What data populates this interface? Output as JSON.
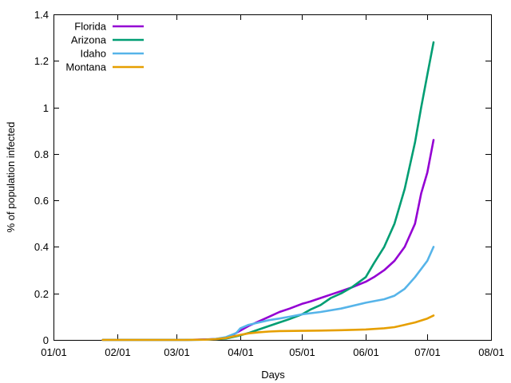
{
  "chart_data": {
    "type": "line",
    "xlabel": "Days",
    "ylabel": "% of population infected",
    "x_ticks": [
      "01/01",
      "02/01",
      "03/01",
      "04/01",
      "05/01",
      "06/01",
      "07/01",
      "08/01"
    ],
    "y_ticks": [
      "0",
      "0.2",
      "0.4",
      "0.6",
      "0.8",
      "1",
      "1.2",
      "1.4"
    ],
    "xlim": [
      "01/01",
      "08/01"
    ],
    "ylim": [
      0,
      1.4
    ],
    "grid": false,
    "legend_position": "top-left",
    "series": [
      {
        "name": "Florida",
        "color": "#9400d3",
        "points": [
          [
            "01/25",
            0
          ],
          [
            "02/15",
            0
          ],
          [
            "03/05",
            0
          ],
          [
            "03/15",
            0.002
          ],
          [
            "03/20",
            0.004
          ],
          [
            "03/25",
            0.01
          ],
          [
            "03/28",
            0.02
          ],
          [
            "04/01",
            0.04
          ],
          [
            "04/05",
            0.06
          ],
          [
            "04/10",
            0.08
          ],
          [
            "04/15",
            0.1
          ],
          [
            "04/20",
            0.12
          ],
          [
            "04/25",
            0.135
          ],
          [
            "05/01",
            0.155
          ],
          [
            "05/05",
            0.165
          ],
          [
            "05/10",
            0.18
          ],
          [
            "05/15",
            0.195
          ],
          [
            "05/20",
            0.21
          ],
          [
            "05/25",
            0.225
          ],
          [
            "06/01",
            0.25
          ],
          [
            "06/05",
            0.27
          ],
          [
            "06/10",
            0.3
          ],
          [
            "06/15",
            0.34
          ],
          [
            "06/20",
            0.4
          ],
          [
            "06/25",
            0.5
          ],
          [
            "06/28",
            0.63
          ],
          [
            "07/01",
            0.72
          ],
          [
            "07/04",
            0.86
          ]
        ]
      },
      {
        "name": "Arizona",
        "color": "#009e73",
        "points": [
          [
            "01/25",
            0
          ],
          [
            "02/15",
            0
          ],
          [
            "03/05",
            0
          ],
          [
            "03/15",
            0.001
          ],
          [
            "03/20",
            0.003
          ],
          [
            "03/25",
            0.006
          ],
          [
            "04/01",
            0.02
          ],
          [
            "04/05",
            0.03
          ],
          [
            "04/10",
            0.045
          ],
          [
            "04/15",
            0.06
          ],
          [
            "04/20",
            0.075
          ],
          [
            "04/25",
            0.09
          ],
          [
            "05/01",
            0.11
          ],
          [
            "05/05",
            0.13
          ],
          [
            "05/10",
            0.15
          ],
          [
            "05/15",
            0.18
          ],
          [
            "05/20",
            0.2
          ],
          [
            "05/25",
            0.225
          ],
          [
            "06/01",
            0.27
          ],
          [
            "06/05",
            0.33
          ],
          [
            "06/10",
            0.4
          ],
          [
            "06/15",
            0.5
          ],
          [
            "06/20",
            0.65
          ],
          [
            "06/25",
            0.85
          ],
          [
            "06/28",
            1.0
          ],
          [
            "07/01",
            1.14
          ],
          [
            "07/04",
            1.28
          ]
        ]
      },
      {
        "name": "Idaho",
        "color": "#56b4e9",
        "points": [
          [
            "01/25",
            0
          ],
          [
            "02/15",
            0
          ],
          [
            "03/05",
            0
          ],
          [
            "03/15",
            0.001
          ],
          [
            "03/20",
            0.004
          ],
          [
            "03/25",
            0.012
          ],
          [
            "03/30",
            0.03
          ],
          [
            "04/01",
            0.05
          ],
          [
            "04/05",
            0.065
          ],
          [
            "04/10",
            0.075
          ],
          [
            "04/15",
            0.085
          ],
          [
            "04/20",
            0.092
          ],
          [
            "04/25",
            0.1
          ],
          [
            "05/01",
            0.11
          ],
          [
            "05/10",
            0.12
          ],
          [
            "05/20",
            0.135
          ],
          [
            "06/01",
            0.16
          ],
          [
            "06/10",
            0.175
          ],
          [
            "06/15",
            0.19
          ],
          [
            "06/20",
            0.22
          ],
          [
            "06/25",
            0.27
          ],
          [
            "07/01",
            0.34
          ],
          [
            "07/04",
            0.4
          ]
        ]
      },
      {
        "name": "Montana",
        "color": "#e69f00",
        "points": [
          [
            "01/25",
            0
          ],
          [
            "02/15",
            0
          ],
          [
            "03/05",
            0
          ],
          [
            "03/15",
            0.001
          ],
          [
            "03/20",
            0.003
          ],
          [
            "03/25",
            0.008
          ],
          [
            "04/01",
            0.022
          ],
          [
            "04/05",
            0.028
          ],
          [
            "04/10",
            0.033
          ],
          [
            "04/15",
            0.036
          ],
          [
            "04/20",
            0.038
          ],
          [
            "05/01",
            0.039
          ],
          [
            "05/10",
            0.04
          ],
          [
            "05/20",
            0.042
          ],
          [
            "06/01",
            0.045
          ],
          [
            "06/10",
            0.05
          ],
          [
            "06/15",
            0.055
          ],
          [
            "06/20",
            0.065
          ],
          [
            "06/25",
            0.075
          ],
          [
            "07/01",
            0.092
          ],
          [
            "07/04",
            0.105
          ]
        ]
      }
    ]
  }
}
